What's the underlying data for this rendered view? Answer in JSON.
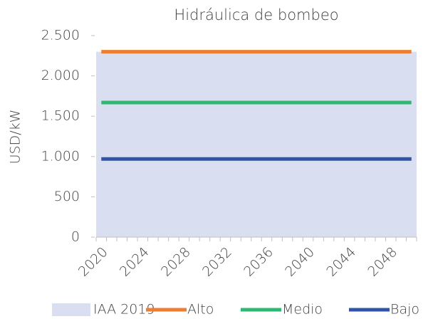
{
  "chart_data": {
    "type": "line",
    "title": "Hidráulica de bombeo",
    "y_label": "USD/kW",
    "categories": [
      2020,
      null,
      null,
      null,
      2024,
      null,
      null,
      null,
      2028,
      null,
      null,
      null,
      2032,
      null,
      null,
      null,
      2036,
      null,
      null,
      null,
      2040,
      null,
      null,
      null,
      2044,
      null,
      null,
      null,
      2048,
      null,
      null
    ],
    "series": [
      {
        "name": "IAA 2019",
        "type": "area",
        "color": "#d9dff0",
        "values": [
          2300,
          2300,
          2300,
          2300,
          2300,
          2300,
          2300,
          2300,
          2300,
          2300,
          2300,
          2300,
          2300,
          2300,
          2300,
          2300,
          2300,
          2300,
          2300,
          2300,
          2300,
          2300,
          2300,
          2300,
          2300,
          2300,
          2300,
          2300,
          2300,
          2300,
          2300
        ]
      },
      {
        "name": "Alto",
        "color": "#ed7d31",
        "values": [
          2300,
          2300,
          2300,
          2300,
          2300,
          2300,
          2300,
          2300,
          2300,
          2300,
          2300,
          2300,
          2300,
          2300,
          2300,
          2300,
          2300,
          2300,
          2300,
          2300,
          2300,
          2300,
          2300,
          2300,
          2300,
          2300,
          2300,
          2300,
          2300,
          2300,
          2300
        ]
      },
      {
        "name": "Medio",
        "color": "#2eb872",
        "values": [
          1670,
          1670,
          1670,
          1670,
          1670,
          1670,
          1670,
          1670,
          1670,
          1670,
          1670,
          1670,
          1670,
          1670,
          1670,
          1670,
          1670,
          1670,
          1670,
          1670,
          1670,
          1670,
          1670,
          1670,
          1670,
          1670,
          1670,
          1670,
          1670,
          1670,
          1670
        ]
      },
      {
        "name": "Bajo",
        "color": "#2f55a4",
        "values": [
          970,
          970,
          970,
          970,
          970,
          970,
          970,
          970,
          970,
          970,
          970,
          970,
          970,
          970,
          970,
          970,
          970,
          970,
          970,
          970,
          970,
          970,
          970,
          970,
          970,
          970,
          970,
          970,
          970,
          970,
          970
        ]
      }
    ],
    "ylim": [
      0,
      2500
    ],
    "yticks": [
      0,
      500,
      {
        "value": 1000,
        "label": "1.000"
      },
      {
        "value": 1500,
        "label": "1.500"
      },
      {
        "value": 2000,
        "label": "2.000"
      },
      {
        "value": 2500,
        "label": "2.500"
      }
    ],
    "legend": "bottom"
  }
}
